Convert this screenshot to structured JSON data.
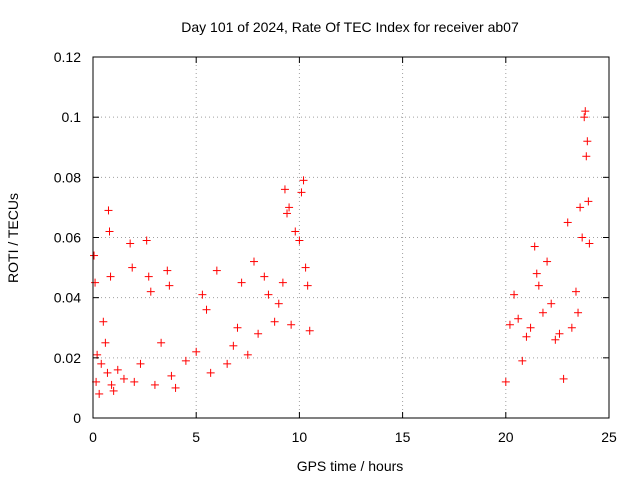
{
  "chart_data": {
    "type": "scatter",
    "title": "Day 101 of 2024, Rate Of TEC Index for receiver ab07",
    "xlabel": "GPS time / hours",
    "ylabel": "ROTI / TECUs",
    "xlim": [
      0,
      25
    ],
    "ylim": [
      0,
      0.12
    ],
    "xticks": [
      "0",
      "5",
      "10",
      "15",
      "20",
      "25"
    ],
    "yticks": [
      "0",
      "0.02",
      "0.04",
      "0.06",
      "0.08",
      "0.1",
      "0.12"
    ],
    "grid": true,
    "marker": "+",
    "color": "#ff0000",
    "series": [
      {
        "x": [
          0.05,
          0.1,
          0.15,
          0.2,
          0.3,
          0.4,
          0.5,
          0.6,
          0.7,
          0.75,
          0.8,
          0.85,
          0.9,
          1.0,
          1.2,
          1.5,
          1.8,
          1.9,
          2.0,
          2.3,
          2.6,
          2.7,
          2.8,
          3.0,
          3.3,
          3.6,
          3.7,
          3.8,
          4.0,
          4.5,
          5.0,
          5.3,
          5.5,
          5.7,
          6.0,
          6.5,
          6.8,
          7.0,
          7.2,
          7.5,
          7.8,
          8.0,
          8.3,
          8.5,
          8.8,
          9.0,
          9.2,
          9.3,
          9.4,
          9.5,
          9.6,
          9.8,
          10.0,
          10.1,
          10.2,
          10.3,
          10.4,
          10.5,
          20.0,
          20.2,
          20.4,
          20.6,
          20.8,
          21.0,
          21.2,
          21.4,
          21.5,
          21.6,
          21.8,
          22.0,
          22.2,
          22.4,
          22.6,
          22.8,
          23.0,
          23.2,
          23.4,
          23.5,
          23.6,
          23.7,
          23.8,
          23.85,
          23.9,
          23.95,
          24.0,
          24.05
        ],
        "y": [
          0.054,
          0.045,
          0.012,
          0.021,
          0.008,
          0.018,
          0.032,
          0.025,
          0.015,
          0.069,
          0.062,
          0.047,
          0.011,
          0.009,
          0.016,
          0.013,
          0.058,
          0.05,
          0.012,
          0.018,
          0.059,
          0.047,
          0.042,
          0.011,
          0.025,
          0.049,
          0.044,
          0.014,
          0.01,
          0.019,
          0.022,
          0.041,
          0.036,
          0.015,
          0.049,
          0.018,
          0.024,
          0.03,
          0.045,
          0.021,
          0.052,
          0.028,
          0.047,
          0.041,
          0.032,
          0.038,
          0.045,
          0.076,
          0.068,
          0.07,
          0.031,
          0.062,
          0.059,
          0.075,
          0.079,
          0.05,
          0.044,
          0.029,
          0.012,
          0.031,
          0.041,
          0.033,
          0.019,
          0.027,
          0.03,
          0.057,
          0.048,
          0.044,
          0.035,
          0.052,
          0.038,
          0.026,
          0.028,
          0.013,
          0.065,
          0.03,
          0.042,
          0.035,
          0.07,
          0.06,
          0.1,
          0.102,
          0.087,
          0.092,
          0.072,
          0.058
        ]
      }
    ]
  }
}
